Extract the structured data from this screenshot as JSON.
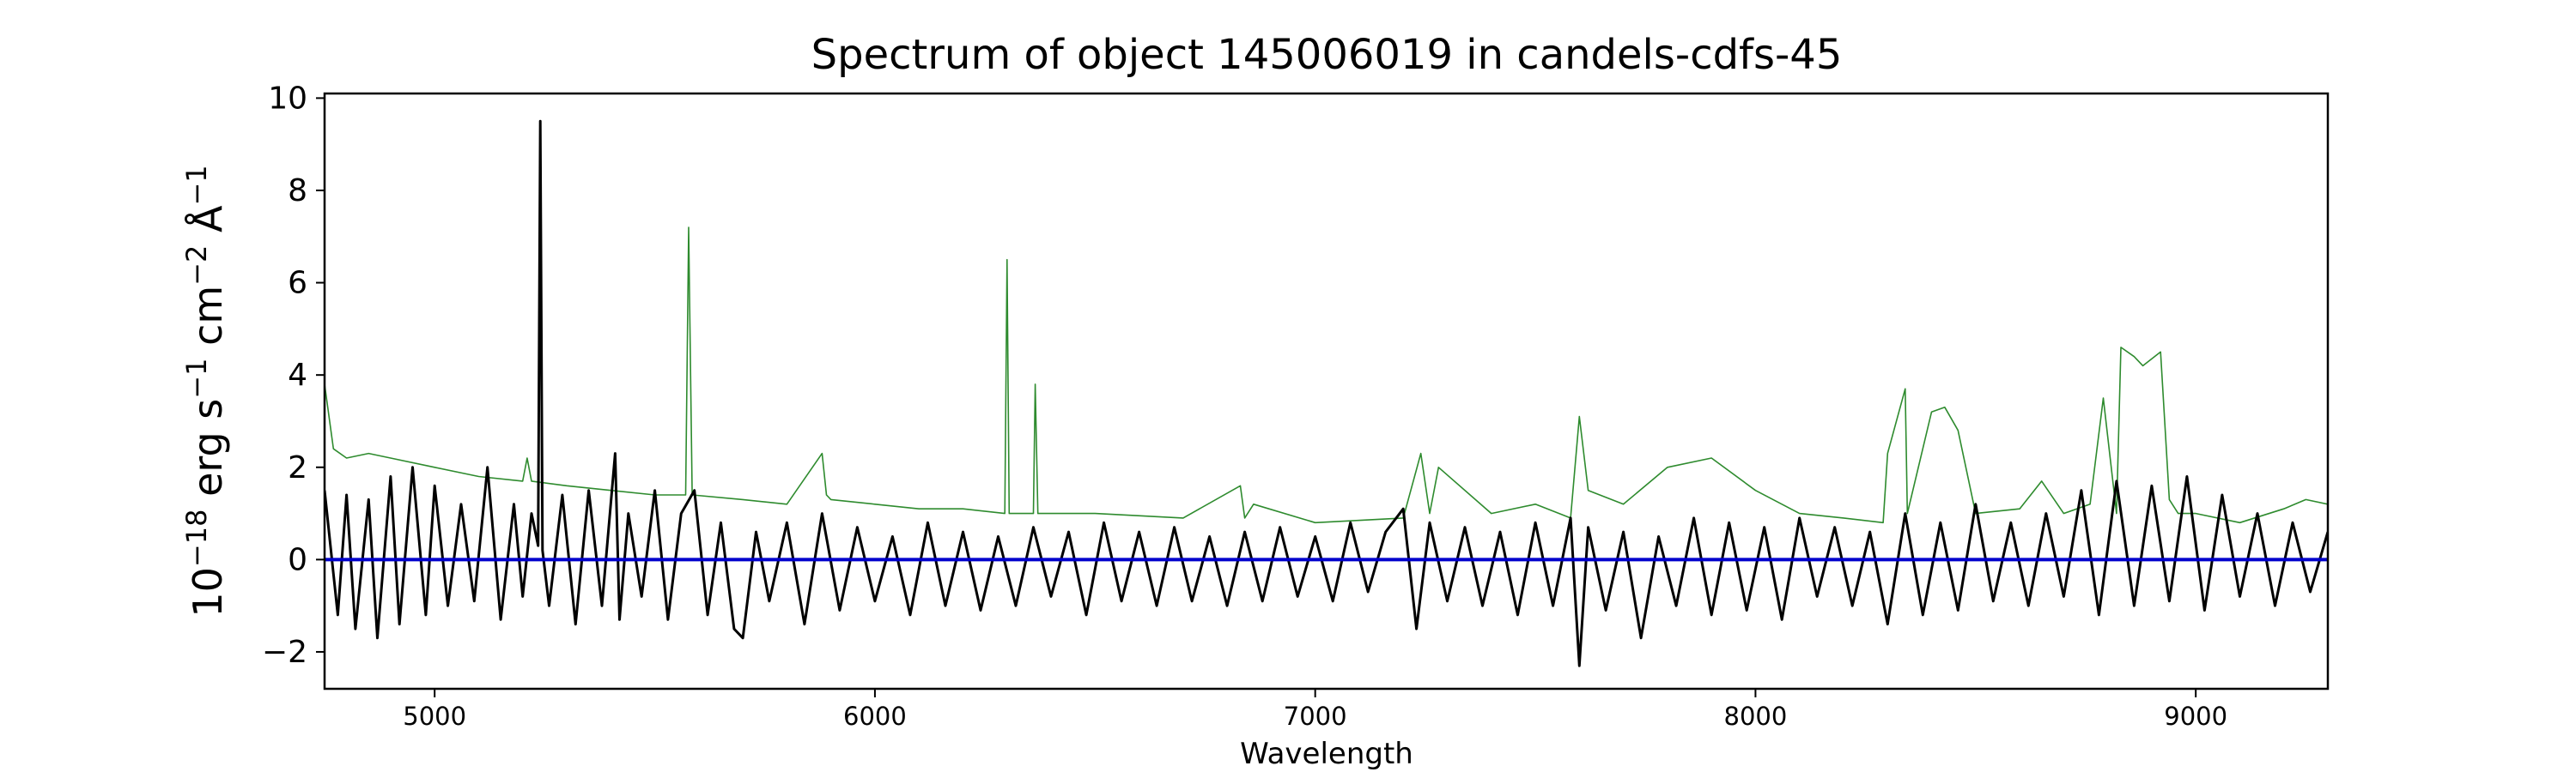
{
  "chart_data": {
    "type": "line",
    "title": "Spectrum of object 145006019 in candels-cdfs-45",
    "xlabel": "Wavelength",
    "ylabel_parts": {
      "base": "10",
      "exp1": "−18",
      "mid1": " erg s",
      "exp2": "−1",
      "mid2": " cm",
      "exp3": "−2",
      "mid3": " Å",
      "exp4": "−1"
    },
    "xlim": [
      4750,
      9300
    ],
    "ylim": [
      -2.8,
      10.1
    ],
    "x_ticks": [
      5000,
      6000,
      7000,
      8000,
      9000
    ],
    "x_tick_labels": [
      "5000",
      "6000",
      "7000",
      "8000",
      "9000"
    ],
    "y_ticks": [
      -2,
      0,
      2,
      4,
      6,
      8,
      10
    ],
    "y_tick_labels": [
      "−2",
      "0",
      "2",
      "4",
      "6",
      "8",
      "10"
    ],
    "grid": false,
    "colors": {
      "flux": "#000000",
      "sky": "#2e8b2e",
      "zero": "#0000cc"
    },
    "series": [
      {
        "role": "sky",
        "x": [
          4750,
          4770,
          4800,
          4850,
          4900,
          5000,
          5100,
          5200,
          5210,
          5220,
          5300,
          5400,
          5500,
          5570,
          5577,
          5585,
          5700,
          5800,
          5880,
          5890,
          5900,
          6000,
          6100,
          6200,
          6295,
          6300,
          6305,
          6360,
          6364,
          6370,
          6500,
          6700,
          6830,
          6840,
          6860,
          7000,
          7200,
          7240,
          7260,
          7280,
          7400,
          7500,
          7580,
          7600,
          7620,
          7700,
          7800,
          7900,
          8000,
          8100,
          8200,
          8290,
          8300,
          8340,
          8345,
          8400,
          8430,
          8460,
          8500,
          8600,
          8650,
          8700,
          8760,
          8790,
          8820,
          8830,
          8860,
          8880,
          8920,
          8940,
          8960,
          9000,
          9100,
          9200,
          9250,
          9300
        ],
        "y": [
          3.8,
          2.4,
          2.2,
          2.3,
          2.2,
          2.0,
          1.8,
          1.7,
          2.2,
          1.7,
          1.6,
          1.5,
          1.4,
          1.4,
          7.2,
          1.4,
          1.3,
          1.2,
          2.3,
          1.4,
          1.3,
          1.2,
          1.1,
          1.1,
          1.0,
          6.5,
          1.0,
          1.0,
          3.8,
          1.0,
          1.0,
          0.9,
          1.6,
          0.9,
          1.2,
          0.8,
          0.9,
          2.3,
          1.0,
          2.0,
          1.0,
          1.2,
          0.9,
          3.1,
          1.5,
          1.2,
          2.0,
          2.2,
          1.5,
          1.0,
          0.9,
          0.8,
          2.3,
          3.7,
          1.0,
          3.2,
          3.3,
          2.8,
          1.0,
          1.1,
          1.7,
          1.0,
          1.2,
          3.5,
          1.0,
          4.6,
          4.4,
          4.2,
          4.5,
          1.3,
          1.0,
          1.0,
          0.8,
          1.1,
          1.3,
          1.2
        ]
      },
      {
        "role": "flux",
        "x": [
          4750,
          4780,
          4800,
          4820,
          4850,
          4870,
          4900,
          4920,
          4950,
          4980,
          5000,
          5030,
          5060,
          5090,
          5120,
          5150,
          5180,
          5200,
          5220,
          5235,
          5240,
          5245,
          5260,
          5290,
          5320,
          5350,
          5380,
          5410,
          5420,
          5440,
          5470,
          5500,
          5530,
          5560,
          5590,
          5620,
          5650,
          5680,
          5700,
          5730,
          5760,
          5800,
          5840,
          5880,
          5920,
          5960,
          6000,
          6040,
          6080,
          6120,
          6160,
          6200,
          6240,
          6280,
          6320,
          6360,
          6400,
          6440,
          6480,
          6520,
          6560,
          6600,
          6640,
          6680,
          6720,
          6760,
          6800,
          6840,
          6880,
          6920,
          6960,
          7000,
          7040,
          7080,
          7120,
          7160,
          7200,
          7230,
          7260,
          7300,
          7340,
          7380,
          7420,
          7460,
          7500,
          7540,
          7580,
          7600,
          7620,
          7660,
          7700,
          7740,
          7780,
          7820,
          7860,
          7900,
          7940,
          7980,
          8020,
          8060,
          8100,
          8140,
          8180,
          8220,
          8260,
          8300,
          8340,
          8380,
          8420,
          8460,
          8500,
          8540,
          8580,
          8620,
          8660,
          8700,
          8740,
          8780,
          8820,
          8860,
          8900,
          8940,
          8980,
          9020,
          9060,
          9100,
          9140,
          9180,
          9220,
          9260,
          9300
        ],
        "y": [
          1.5,
          -1.2,
          1.4,
          -1.5,
          1.3,
          -1.7,
          1.8,
          -1.4,
          2.0,
          -1.2,
          1.6,
          -1.0,
          1.2,
          -0.9,
          2.0,
          -1.3,
          1.2,
          -0.8,
          1.0,
          0.3,
          9.5,
          0.2,
          -1.0,
          1.4,
          -1.4,
          1.5,
          -1.0,
          2.3,
          -1.3,
          1.0,
          -0.8,
          1.5,
          -1.3,
          1.0,
          1.5,
          -1.2,
          0.8,
          -1.5,
          -1.7,
          0.6,
          -0.9,
          0.8,
          -1.4,
          1.0,
          -1.1,
          0.7,
          -0.9,
          0.5,
          -1.2,
          0.8,
          -1.0,
          0.6,
          -1.1,
          0.5,
          -1.0,
          0.7,
          -0.8,
          0.6,
          -1.2,
          0.8,
          -0.9,
          0.6,
          -1.0,
          0.7,
          -0.9,
          0.5,
          -1.0,
          0.6,
          -0.9,
          0.7,
          -0.8,
          0.5,
          -0.9,
          0.8,
          -0.7,
          0.6,
          1.1,
          -1.5,
          0.8,
          -0.9,
          0.7,
          -1.0,
          0.6,
          -1.2,
          0.8,
          -1.0,
          0.9,
          -2.3,
          0.7,
          -1.1,
          0.6,
          -1.7,
          0.5,
          -1.0,
          0.9,
          -1.2,
          0.8,
          -1.1,
          0.7,
          -1.3,
          0.9,
          -0.8,
          0.7,
          -1.0,
          0.6,
          -1.4,
          1.0,
          -1.2,
          0.8,
          -1.1,
          1.2,
          -0.9,
          0.8,
          -1.0,
          1.0,
          -0.8,
          1.5,
          -1.2,
          1.7,
          -1.0,
          1.6,
          -0.9,
          1.8,
          -1.1,
          1.4,
          -0.8,
          1.0,
          -1.0,
          0.8,
          -0.7,
          0.6
        ]
      },
      {
        "role": "zero",
        "x": [
          4750,
          9300
        ],
        "y": [
          0,
          0
        ]
      }
    ]
  }
}
